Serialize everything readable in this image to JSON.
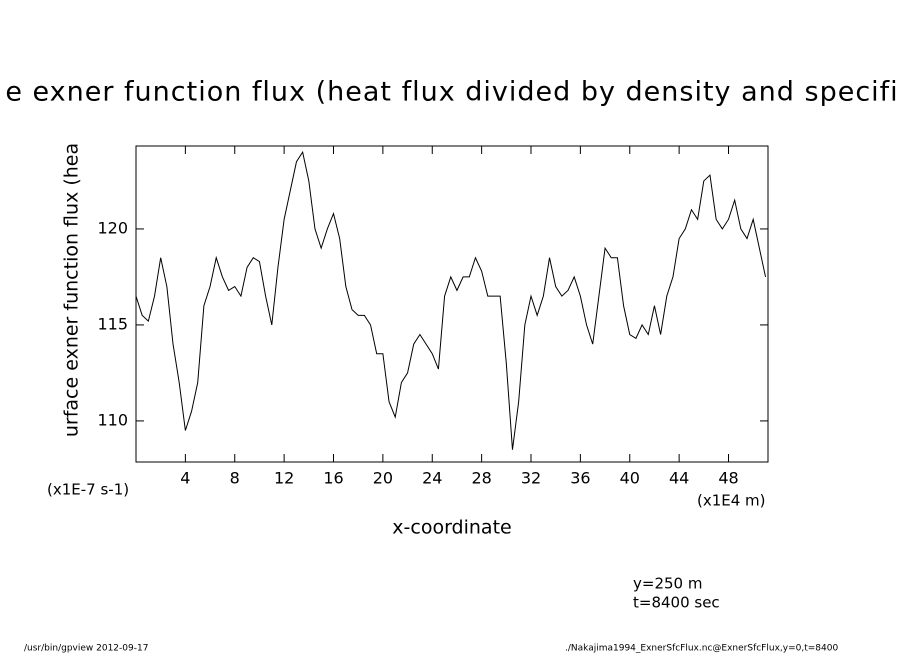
{
  "chart_data": {
    "type": "line",
    "title": "e exner function flux (heat flux divided by density and specifi",
    "y_label": "urface exner function flux (hea",
    "x_label": "x-coordinate",
    "y_units": "(x1E-7 s-1)",
    "x_units": "(x1E4 m)",
    "annotations": [
      "y=250 m",
      "t=8400 sec"
    ],
    "footer_left": "/usr/bin/gpview  2012-09-17",
    "footer_right": "./Nakajima1994_ExnerSfcFlux.nc@ExnerSfcFlux,y=0,t=8400",
    "color": "#000000",
    "xlim": [
      0,
      51.2
    ],
    "ylim": [
      107.86,
      124.32
    ],
    "xticks": [
      4,
      8,
      12,
      16,
      20,
      24,
      28,
      32,
      36,
      40,
      44,
      48
    ],
    "yticks": [
      110,
      115,
      120
    ],
    "x": [
      0,
      0.5,
      1,
      1.5,
      2,
      2.5,
      3,
      3.5,
      4,
      4.5,
      5,
      5.5,
      6,
      6.5,
      7,
      7.5,
      8,
      8.5,
      9,
      9.5,
      10,
      10.5,
      11,
      11.5,
      12,
      12.5,
      13,
      13.5,
      14,
      14.5,
      15,
      15.5,
      16,
      16.5,
      17,
      17.5,
      18,
      18.5,
      19,
      19.5,
      20,
      20.5,
      21,
      21.5,
      22,
      22.5,
      23,
      23.5,
      24,
      24.5,
      25,
      25.5,
      26,
      26.5,
      27,
      27.5,
      28,
      28.5,
      29,
      29.5,
      30,
      30.5,
      31,
      31.5,
      32,
      32.5,
      33,
      33.5,
      34,
      34.5,
      35,
      35.5,
      36,
      36.5,
      37,
      37.5,
      38,
      38.5,
      39,
      39.5,
      40,
      40.5,
      41,
      41.5,
      42,
      42.5,
      43,
      43.5,
      44,
      44.5,
      45,
      45.5,
      46,
      46.5,
      47,
      47.5,
      48,
      48.5,
      49,
      49.5,
      50,
      50.5,
      51
    ],
    "values": [
      116.5,
      115.5,
      115.2,
      116.5,
      118.5,
      117,
      114,
      112,
      109.5,
      110.5,
      112,
      116,
      117,
      118.5,
      117.5,
      116.8,
      117,
      116.5,
      118,
      118.5,
      118.3,
      116.5,
      115,
      118,
      120.5,
      122,
      123.5,
      124,
      122.5,
      120,
      119,
      120,
      120.8,
      119.5,
      117,
      115.8,
      115.5,
      115.5,
      115,
      113.5,
      113.5,
      111,
      110.2,
      112,
      112.5,
      114,
      114.5,
      114,
      113.5,
      112.7,
      116.5,
      117.5,
      116.8,
      117.5,
      117.5,
      118.5,
      117.8,
      116.5,
      116.5,
      116.5,
      113,
      108.5,
      111,
      115,
      116.5,
      115.5,
      116.5,
      118.5,
      117,
      116.5,
      116.8,
      117.5,
      116.5,
      115,
      114,
      116.5,
      119,
      118.5,
      118.5,
      116,
      114.5,
      114.3,
      115,
      114.5,
      116,
      114.5,
      116.5,
      117.5,
      119.5,
      120,
      121,
      120.5,
      122.5,
      122.8,
      120.5,
      120,
      120.5,
      121.5,
      120,
      119.5,
      120.5,
      119,
      117.5
    ]
  }
}
